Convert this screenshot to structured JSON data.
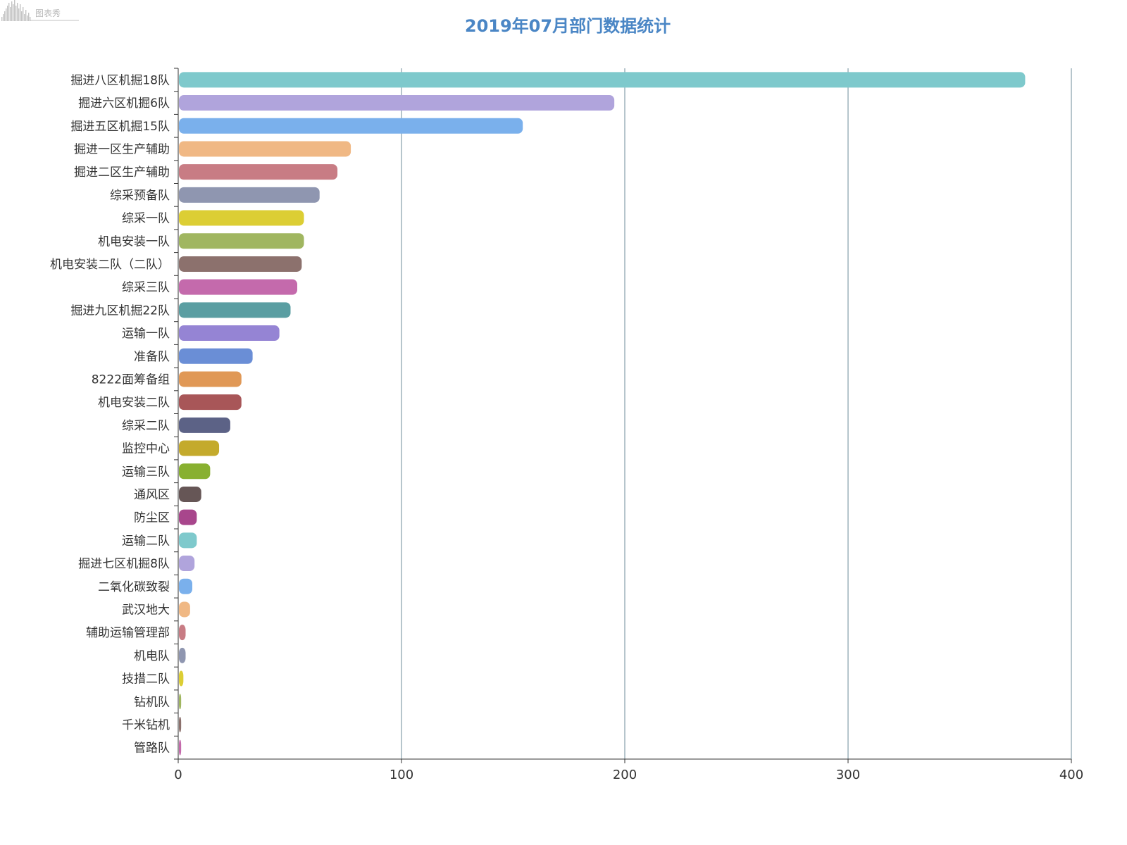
{
  "watermark": {
    "text": "图表秀"
  },
  "chart_data": {
    "type": "bar",
    "orientation": "horizontal",
    "title": "2019年07月部门数据统计",
    "xlabel": "",
    "ylabel": "",
    "xlim": [
      0,
      400
    ],
    "x_ticks": [
      0,
      100,
      200,
      300,
      400
    ],
    "grid": true,
    "legend": "none",
    "categories": [
      "掘进八区机掘18队",
      "掘进六区机掘6队",
      "掘进五区机掘15队",
      "掘进一区生产辅助",
      "掘进二区生产辅助",
      "综采预备队",
      "综采一队",
      "机电安装一队",
      "机电安装二队（二队）",
      "综采三队",
      "掘进九区机掘22队",
      "运输一队",
      "准备队",
      "8222面筹备组",
      "机电安装二队",
      "综采二队",
      "监控中心",
      "运输三队",
      "通风区",
      "防尘区",
      "运输二队",
      "掘进七区机掘8队",
      "二氧化碳致裂",
      "武汉地大",
      "辅助运输管理部",
      "机电队",
      "技措二队",
      "钻机队",
      "千米钻机",
      "管路队"
    ],
    "values": [
      379,
      195,
      154,
      77,
      71,
      63,
      56,
      56,
      55,
      53,
      50,
      45,
      33,
      28,
      28,
      23,
      18,
      14,
      10,
      8,
      8,
      7,
      6,
      5,
      3,
      3,
      2,
      1,
      1,
      1
    ],
    "colors": [
      "#7ec9cc",
      "#b0a4dc",
      "#7ab0ec",
      "#f0b884",
      "#c87c84",
      "#8f96b0",
      "#dcce34",
      "#a0b660",
      "#8c716d",
      "#c46aac",
      "#5a9ea2",
      "#9584d4",
      "#6a8ed6",
      "#e09856",
      "#a85658",
      "#5c6286",
      "#c4aa2c",
      "#88b030",
      "#665656",
      "#a8468c",
      "#7ec9cc",
      "#b0a4dc",
      "#7ab0ec",
      "#f0b884",
      "#c87c84",
      "#8f96b0",
      "#dcce34",
      "#a0b660",
      "#8c716d",
      "#c46aac"
    ],
    "gridColor": "#6e8b98",
    "axisColor": "#333333"
  }
}
